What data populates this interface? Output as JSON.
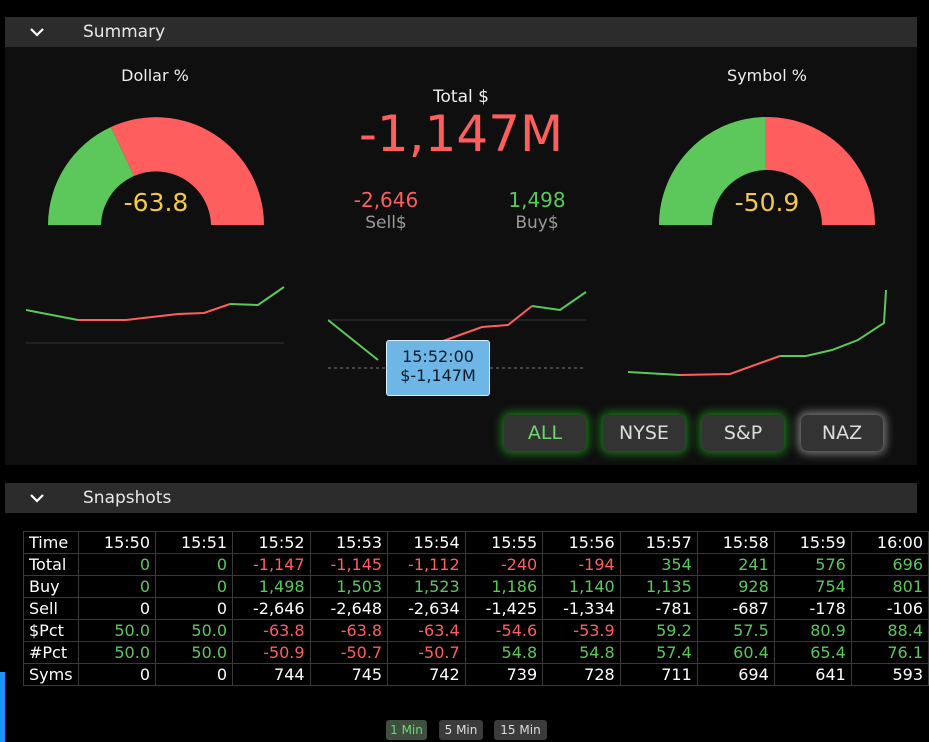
{
  "summary": {
    "title": "Summary",
    "dollar_label": "Dollar %",
    "dollar_value": "-63.8",
    "symbol_label": "Symbol %",
    "symbol_value": "-50.9",
    "total_label": "Total $",
    "total_value": "-1,147M",
    "sell_value": "-2,646",
    "sell_label": "Sell$",
    "buy_value": "1,498",
    "buy_label": "Buy$",
    "tooltip_time": "15:52:00",
    "tooltip_value": "$-1,147M"
  },
  "gauges": {
    "dollar_pct": -63.8,
    "symbol_pct": -50.9
  },
  "filters": [
    {
      "label": "ALL",
      "glow": "green"
    },
    {
      "label": "NYSE",
      "glow": "green"
    },
    {
      "label": "S&P",
      "glow": "green"
    },
    {
      "label": "NAZ",
      "glow": "white"
    }
  ],
  "snapshots": {
    "title": "Snapshots",
    "header": [
      "Time",
      "15:50",
      "15:51",
      "15:52",
      "15:53",
      "15:54",
      "15:55",
      "15:56",
      "15:57",
      "15:58",
      "15:59",
      "16:00"
    ],
    "rows": [
      {
        "label": "Total",
        "values": [
          "0",
          "0",
          "-1,147",
          "-1,145",
          "-1,112",
          "-240",
          "-194",
          "354",
          "241",
          "576",
          "696"
        ],
        "colors": [
          "pos",
          "pos",
          "neg",
          "neg",
          "neg",
          "neg",
          "neg",
          "pos",
          "pos",
          "pos",
          "pos"
        ]
      },
      {
        "label": "Buy",
        "values": [
          "0",
          "0",
          "1,498",
          "1,503",
          "1,523",
          "1,186",
          "1,140",
          "1,135",
          "928",
          "754",
          "801"
        ],
        "colors": [
          "pos",
          "pos",
          "pos",
          "pos",
          "pos",
          "pos",
          "pos",
          "pos",
          "pos",
          "pos",
          "pos"
        ]
      },
      {
        "label": "Sell",
        "values": [
          "0",
          "0",
          "-2,646",
          "-2,648",
          "-2,634",
          "-1,425",
          "-1,334",
          "-781",
          "-687",
          "-178",
          "-106"
        ],
        "colors": [
          "wht",
          "wht",
          "wht",
          "wht",
          "wht",
          "wht",
          "wht",
          "wht",
          "wht",
          "wht",
          "wht"
        ]
      },
      {
        "label": "$Pct",
        "values": [
          "50.0",
          "50.0",
          "-63.8",
          "-63.8",
          "-63.4",
          "-54.6",
          "-53.9",
          "59.2",
          "57.5",
          "80.9",
          "88.4"
        ],
        "colors": [
          "pos",
          "pos",
          "neg",
          "neg",
          "neg",
          "neg",
          "neg",
          "pos",
          "pos",
          "pos",
          "pos"
        ]
      },
      {
        "label": "#Pct",
        "values": [
          "50.0",
          "50.0",
          "-50.9",
          "-50.7",
          "-50.7",
          "54.8",
          "54.8",
          "57.4",
          "60.4",
          "65.4",
          "76.1"
        ],
        "colors": [
          "pos",
          "pos",
          "neg",
          "neg",
          "neg",
          "pos",
          "pos",
          "pos",
          "pos",
          "pos",
          "pos"
        ]
      },
      {
        "label": "Syms",
        "values": [
          "0",
          "0",
          "744",
          "745",
          "742",
          "739",
          "728",
          "711",
          "694",
          "641",
          "593"
        ],
        "colors": [
          "wht",
          "wht",
          "wht",
          "wht",
          "wht",
          "wht",
          "wht",
          "wht",
          "wht",
          "wht",
          "wht"
        ]
      }
    ]
  },
  "intervals": [
    "1 Min",
    "5 Min",
    "15 Min"
  ],
  "colors": {
    "green": "#5cc85c",
    "red": "#ff5e5e",
    "gold": "#f2c94c",
    "tooltip": "#6db6e6"
  }
}
